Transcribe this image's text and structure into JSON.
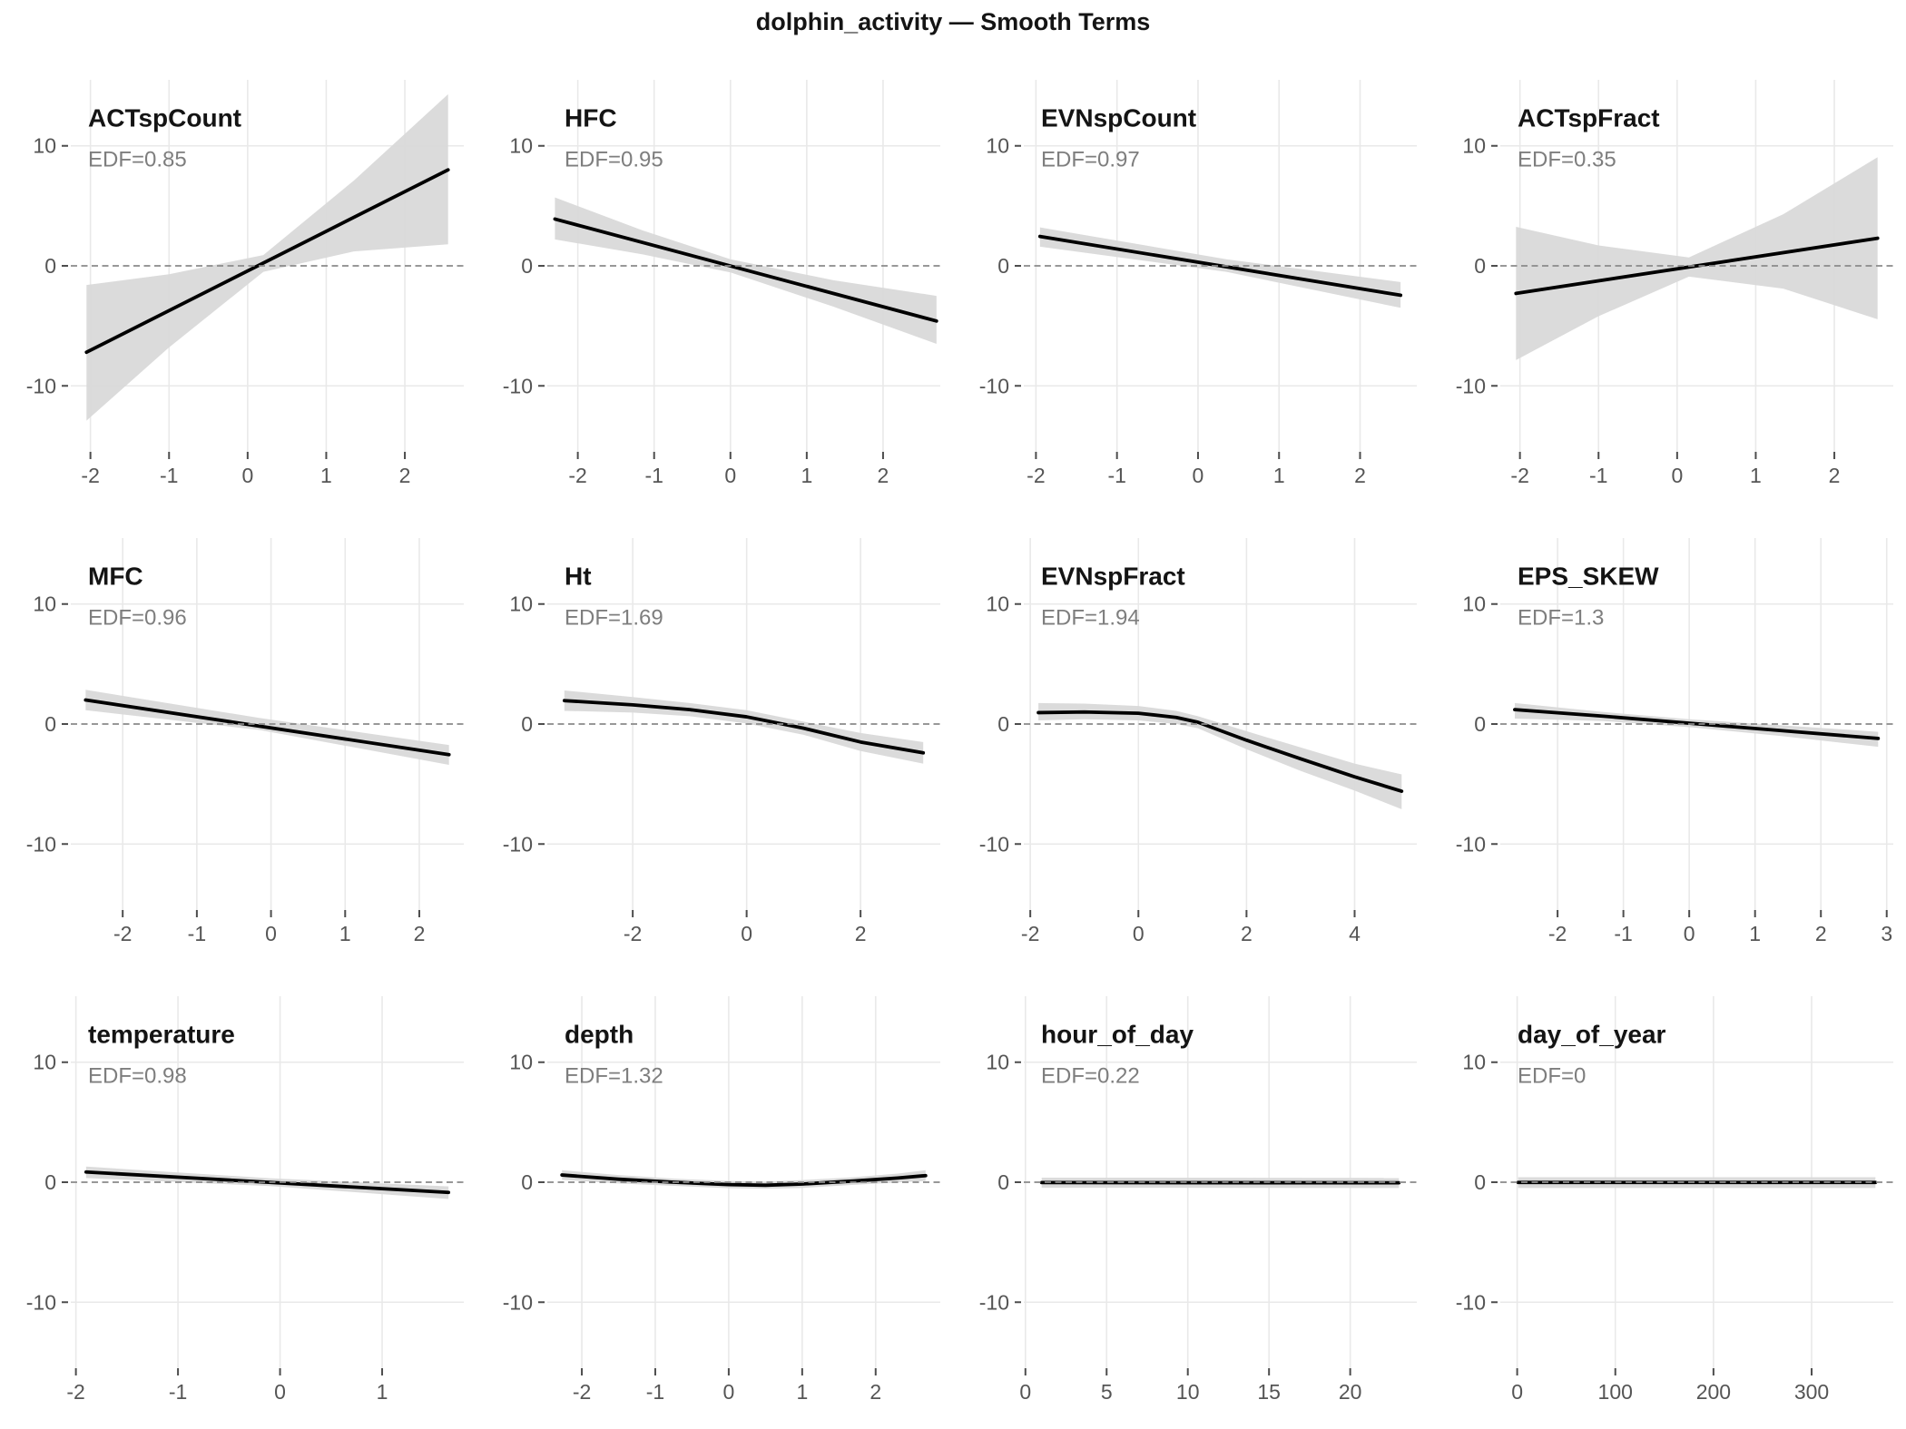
{
  "figure": {
    "title": "dolphin_activity — Smooth Terms"
  },
  "colors": {
    "background": "#ffffff",
    "gridline": "#e9e9e9",
    "confidence_band": "#d9d9d9",
    "smooth_line": "#000000",
    "zero_dashed_line": "#8a8a8a",
    "axis_text": "#555555",
    "panel_title": "#141414",
    "edf_text": "#7e7e7e"
  },
  "chart_data": {
    "type": "line",
    "title": "dolphin_activity — Smooth Terms",
    "subtitle": "",
    "xlabel": "",
    "ylabel": "",
    "grid": "on",
    "legend": "none",
    "ylim": [
      -15.5,
      15.5
    ],
    "yticks": [
      10,
      0,
      -10
    ],
    "zero_reference_line": 0,
    "band_meaning": "confidence interval around smooth estimate",
    "panels": [
      {
        "title": "ACTspCount",
        "edf": "EDF=0.85",
        "xlim": [
          -2.25,
          2.75
        ],
        "xticks": [
          -2,
          -1,
          0,
          1,
          2
        ],
        "line": {
          "x": [
            -2.05,
            2.55
          ],
          "y": [
            -7.2,
            8.0
          ]
        },
        "band": {
          "x": [
            -2.05,
            -1.0,
            0.2,
            1.35,
            2.55
          ],
          "hi": [
            -1.6,
            -0.7,
            0.9,
            7.1,
            14.3
          ],
          "lo": [
            -12.9,
            -6.8,
            -0.5,
            1.2,
            1.8
          ]
        }
      },
      {
        "title": "HFC",
        "edf": "EDF=0.95",
        "xlim": [
          -2.4,
          2.75
        ],
        "xticks": [
          -2,
          -1,
          0,
          1,
          2
        ],
        "line": {
          "x": [
            -2.3,
            2.7
          ],
          "y": [
            3.9,
            -4.6
          ]
        },
        "band": {
          "x": [
            -2.3,
            -1.15,
            0.0,
            1.35,
            2.7
          ],
          "hi": [
            5.7,
            2.95,
            0.55,
            -1.2,
            -2.5
          ],
          "lo": [
            2.2,
            0.95,
            -0.55,
            -3.4,
            -6.5
          ]
        }
      },
      {
        "title": "EVNspCount",
        "edf": "EDF=0.97",
        "xlim": [
          -2.15,
          2.7
        ],
        "xticks": [
          -2,
          -1,
          0,
          1,
          2
        ],
        "line": {
          "x": [
            -1.95,
            2.5
          ],
          "y": [
            2.45,
            -2.45
          ]
        },
        "band": {
          "x": [
            -1.95,
            0.35,
            2.5
          ],
          "hi": [
            3.2,
            0.55,
            -1.35
          ],
          "lo": [
            1.6,
            -0.5,
            -3.5
          ]
        }
      },
      {
        "title": "ACTspFract",
        "edf": "EDF=0.35",
        "xlim": [
          -2.25,
          2.75
        ],
        "xticks": [
          -2,
          -1,
          0,
          1,
          2
        ],
        "line": {
          "x": [
            -2.05,
            2.55
          ],
          "y": [
            -2.3,
            2.3
          ]
        },
        "band": {
          "x": [
            -2.05,
            -1.0,
            0.15,
            1.35,
            2.55
          ],
          "hi": [
            3.25,
            1.7,
            0.7,
            4.3,
            9.05
          ],
          "lo": [
            -7.85,
            -4.2,
            -0.9,
            -1.9,
            -4.45
          ]
        }
      },
      {
        "title": "MFC",
        "edf": "EDF=0.96",
        "xlim": [
          -2.7,
          2.6
        ],
        "xticks": [
          -2,
          -1,
          0,
          1,
          2
        ],
        "line": {
          "x": [
            -2.5,
            2.4
          ],
          "y": [
            2.0,
            -2.55
          ]
        },
        "band": {
          "x": [
            -2.5,
            -0.15,
            2.4
          ],
          "hi": [
            2.85,
            0.5,
            -1.75
          ],
          "lo": [
            1.15,
            -0.5,
            -3.4
          ]
        }
      },
      {
        "title": "Ht",
        "edf": "EDF=1.69",
        "xlim": [
          -3.5,
          3.4
        ],
        "xticks": [
          -2,
          0,
          2
        ],
        "line": {
          "x": [
            -3.2,
            -2,
            -1,
            0,
            1,
            2,
            3.1
          ],
          "y": [
            1.95,
            1.6,
            1.2,
            0.6,
            -0.35,
            -1.5,
            -2.4
          ]
        },
        "band": {
          "x": [
            -3.2,
            -2,
            -1,
            0,
            1,
            2,
            3.1
          ],
          "hi": [
            2.8,
            2.25,
            1.75,
            1.15,
            0.2,
            -0.75,
            -1.5
          ],
          "lo": [
            1.1,
            0.95,
            0.65,
            0.05,
            -0.9,
            -2.25,
            -3.3
          ]
        }
      },
      {
        "title": "EVNspFract",
        "edf": "EDF=1.94",
        "xlim": [
          -2.12,
          5.15
        ],
        "xticks": [
          -2,
          0,
          2,
          4
        ],
        "line": {
          "x": [
            -1.85,
            -1,
            0,
            0.7,
            1.1,
            2,
            3,
            4,
            4.87
          ],
          "y": [
            0.95,
            1.0,
            0.9,
            0.55,
            0.15,
            -1.35,
            -2.9,
            -4.4,
            -5.6
          ]
        },
        "band": {
          "x": [
            -1.85,
            -1,
            0,
            0.7,
            1.1,
            2,
            3,
            4,
            4.87
          ],
          "hi": [
            1.75,
            1.7,
            1.5,
            1.1,
            0.65,
            -0.6,
            -1.95,
            -3.3,
            -4.2
          ],
          "lo": [
            0.3,
            0.4,
            0.3,
            0.0,
            -0.35,
            -2.1,
            -3.9,
            -5.55,
            -7.1
          ]
        }
      },
      {
        "title": "EPS_SKEW",
        "edf": "EDF=1.3",
        "xlim": [
          -2.87,
          3.1
        ],
        "xticks": [
          -2,
          -1,
          0,
          1,
          2,
          3
        ],
        "line": {
          "x": [
            -2.65,
            -1.3,
            0.05,
            1.4,
            2.87
          ],
          "y": [
            1.2,
            0.65,
            0.05,
            -0.55,
            -1.2
          ]
        },
        "band": {
          "x": [
            -2.65,
            -1.3,
            0.05,
            1.4,
            2.87
          ],
          "hi": [
            1.75,
            1.0,
            0.38,
            -0.1,
            -0.65
          ],
          "lo": [
            0.45,
            0.25,
            -0.28,
            -1.0,
            -1.9
          ]
        }
      },
      {
        "title": "temperature",
        "edf": "EDF=0.98",
        "xlim": [
          -2.05,
          1.8
        ],
        "xticks": [
          -2,
          -1,
          0,
          1
        ],
        "line": {
          "x": [
            -1.9,
            1.65
          ],
          "y": [
            0.85,
            -0.85
          ]
        },
        "band": {
          "x": [
            -1.9,
            -0.1,
            1.65
          ],
          "hi": [
            1.3,
            0.33,
            -0.35
          ],
          "lo": [
            0.35,
            -0.32,
            -1.4
          ]
        }
      },
      {
        "title": "depth",
        "edf": "EDF=1.32",
        "xlim": [
          -2.47,
          2.88
        ],
        "xticks": [
          -2,
          -1,
          0,
          1,
          2
        ],
        "line": {
          "x": [
            -2.27,
            -1.5,
            -0.75,
            0,
            0.5,
            1,
            1.7,
            2.3,
            2.68
          ],
          "y": [
            0.6,
            0.25,
            0.0,
            -0.2,
            -0.25,
            -0.15,
            0.1,
            0.35,
            0.55
          ]
        },
        "band": {
          "x": [
            -2.27,
            -1.5,
            -0.75,
            0,
            0.5,
            1,
            1.7,
            2.3,
            2.68
          ],
          "hi": [
            1.0,
            0.6,
            0.3,
            0.1,
            0.05,
            0.18,
            0.42,
            0.72,
            1.0
          ],
          "lo": [
            0.2,
            -0.1,
            -0.3,
            -0.5,
            -0.55,
            -0.48,
            -0.22,
            -0.02,
            0.1
          ]
        }
      },
      {
        "title": "hour_of_day",
        "edf": "EDF=0.22",
        "xlim": [
          -0.1,
          24.1
        ],
        "xticks": [
          0,
          5,
          10,
          15,
          20
        ],
        "line": {
          "x": [
            1,
            23
          ],
          "y": [
            -0.03,
            -0.05
          ]
        },
        "band": {
          "x": [
            1,
            23
          ],
          "hi": [
            0.38,
            0.36
          ],
          "lo": [
            -0.46,
            -0.48
          ]
        }
      },
      {
        "title": "day_of_year",
        "edf": "EDF=0",
        "xlim": [
          -17.2,
          383.2
        ],
        "xticks": [
          0,
          100,
          200,
          300
        ],
        "line": {
          "x": [
            1,
            365
          ],
          "y": [
            -0.02,
            -0.02
          ]
        },
        "band": {
          "x": [
            1,
            365
          ],
          "hi": [
            0.42,
            0.42
          ],
          "lo": [
            -0.48,
            -0.48
          ]
        }
      }
    ]
  }
}
